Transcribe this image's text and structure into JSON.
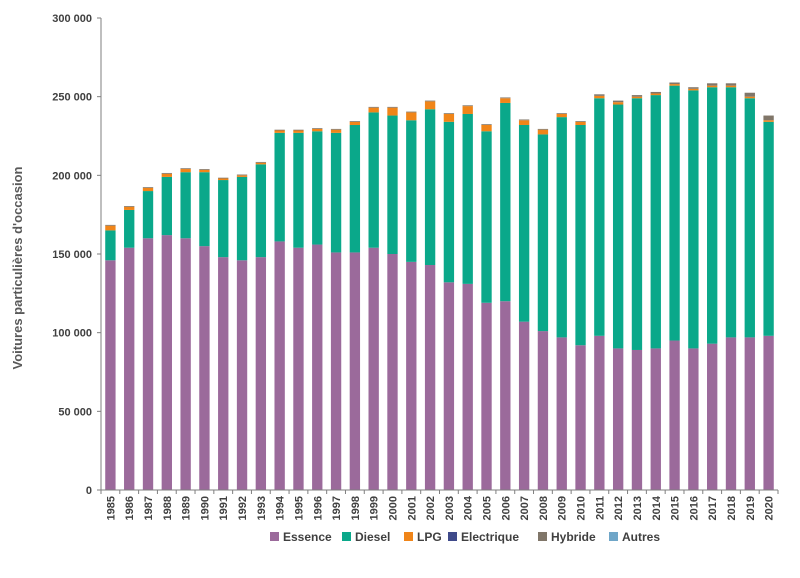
{
  "chart_data": {
    "type": "bar",
    "stacked": true,
    "ylabel": "Voitures particulières d'occasion",
    "ylim": [
      0,
      300000
    ],
    "yticks": [
      0,
      50000,
      100000,
      150000,
      200000,
      250000,
      300000
    ],
    "ytick_labels": [
      "0",
      "50 000",
      "100 000",
      "150 000",
      "200 000",
      "250 000",
      "300 000"
    ],
    "grid": false,
    "legend_position": "bottom",
    "categories": [
      "1985",
      "1986",
      "1987",
      "1988",
      "1989",
      "1990",
      "1991",
      "1992",
      "1993",
      "1994",
      "1995",
      "1996",
      "1997",
      "1998",
      "1999",
      "2000",
      "2001",
      "2002",
      "2003",
      "2004",
      "2005",
      "2006",
      "2007",
      "2008",
      "2009",
      "2010",
      "2011",
      "2012",
      "2013",
      "2014",
      "2015",
      "2016",
      "2017",
      "2018",
      "2019",
      "2020"
    ],
    "series": [
      {
        "name": "Essence",
        "color": "#9b6a9b",
        "values": [
          146000,
          154000,
          160000,
          162000,
          160000,
          155000,
          148000,
          146000,
          148000,
          158000,
          154000,
          156000,
          151000,
          151000,
          154000,
          150000,
          145000,
          143000,
          132000,
          131000,
          119000,
          120000,
          107000,
          101000,
          97000,
          92000,
          98000,
          90000,
          89000,
          90000,
          95000,
          90000,
          93000,
          97000,
          97000,
          98000
        ]
      },
      {
        "name": "Diesel",
        "color": "#0aa88a",
        "values": [
          19000,
          24000,
          30000,
          37000,
          42000,
          47000,
          49000,
          53000,
          59000,
          69000,
          73000,
          72000,
          76000,
          81000,
          86000,
          88000,
          90000,
          99000,
          102000,
          108000,
          109000,
          126000,
          125000,
          125000,
          140000,
          140000,
          151000,
          155000,
          160000,
          161000,
          162000,
          164000,
          163000,
          159000,
          152000,
          136000
        ]
      },
      {
        "name": "LPG",
        "color": "#f08519",
        "values": [
          3000,
          2000,
          2000,
          2000,
          2000,
          1500,
          1000,
          1000,
          1000,
          1500,
          1500,
          1500,
          2000,
          2000,
          3000,
          5000,
          5000,
          5000,
          5000,
          5000,
          4000,
          3000,
          3000,
          3000,
          2000,
          2000,
          1500,
          1500,
          1000,
          1000,
          1000,
          1000,
          1000,
          1000,
          1000,
          1000
        ]
      },
      {
        "name": "Electrique",
        "color": "#3f4a8a",
        "values": [
          0,
          0,
          0,
          0,
          0,
          0,
          0,
          0,
          0,
          0,
          0,
          0,
          0,
          0,
          0,
          0,
          0,
          0,
          0,
          0,
          0,
          0,
          0,
          0,
          0,
          0,
          0,
          0,
          0,
          0,
          0,
          0,
          0,
          0,
          0,
          0
        ]
      },
      {
        "name": "Hybride",
        "color": "#807669",
        "values": [
          500,
          500,
          500,
          500,
          500,
          500,
          500,
          500,
          500,
          500,
          500,
          500,
          500,
          500,
          500,
          500,
          500,
          500,
          500,
          500,
          500,
          500,
          500,
          500,
          500,
          500,
          1000,
          1000,
          1000,
          1000,
          1000,
          1000,
          1500,
          1500,
          2500,
          3000
        ]
      },
      {
        "name": "Autres",
        "color": "#6fa6c8",
        "values": [
          0,
          0,
          0,
          0,
          0,
          0,
          0,
          0,
          0,
          0,
          0,
          0,
          0,
          0,
          0,
          0,
          0,
          0,
          0,
          0,
          0,
          0,
          0,
          0,
          0,
          0,
          0,
          0,
          0,
          0,
          0,
          0,
          0,
          0,
          0,
          0
        ]
      }
    ]
  }
}
